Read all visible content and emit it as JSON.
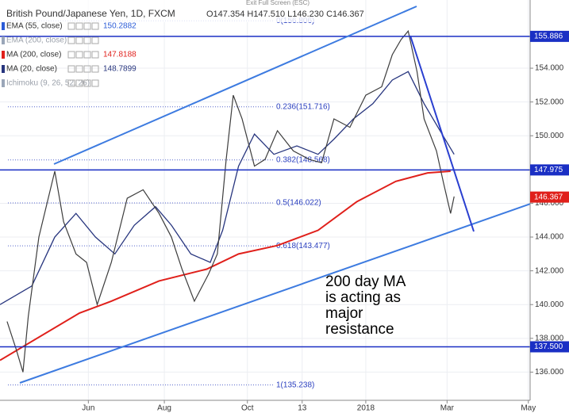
{
  "chart_data": {
    "type": "line",
    "title": "British Pound/Japanese Yen, 1D, FXCM",
    "ohlc_text": "O147.354 H147.510 L146.230 C146.367",
    "toolbar_text": "Exit Full Screen (ESC)",
    "xlim": [
      0,
      300
    ],
    "ylim": [
      134.33,
      158.04
    ],
    "xticks": [
      {
        "value": 50,
        "label": "Jun"
      },
      {
        "value": 93,
        "label": "Aug"
      },
      {
        "value": 140,
        "label": "Oct"
      },
      {
        "value": 171,
        "label": "13"
      },
      {
        "value": 207,
        "label": "2018"
      },
      {
        "value": 253,
        "label": "Mar"
      },
      {
        "value": 299,
        "label": "May"
      }
    ],
    "yticks": [
      {
        "value": 136,
        "label": "136.000"
      },
      {
        "value": 138,
        "label": "138.000"
      },
      {
        "value": 140,
        "label": "140.000"
      },
      {
        "value": 142,
        "label": "142.000"
      },
      {
        "value": 144,
        "label": "144.000"
      },
      {
        "value": 146,
        "label": "146.000"
      },
      {
        "value": 148,
        "label": "148.000"
      },
      {
        "value": 150,
        "label": "150.000"
      },
      {
        "value": 152,
        "label": "152.000"
      },
      {
        "value": 154,
        "label": "154.000"
      }
    ],
    "price": {
      "color": "#3d3d3d",
      "x": [
        4,
        9,
        13,
        16,
        22,
        31,
        36,
        43,
        49,
        55,
        63,
        72,
        81,
        90,
        97,
        103,
        110,
        118,
        123,
        128,
        132,
        137,
        144,
        150,
        157,
        166,
        175,
        182,
        189,
        198,
        207,
        216,
        222,
        227,
        231,
        236,
        240,
        247,
        251,
        255,
        257
      ],
      "values": [
        139.0,
        137.4,
        136.0,
        139.3,
        144.0,
        147.9,
        144.9,
        143.0,
        142.5,
        140.0,
        142.5,
        146.3,
        146.8,
        145.4,
        144.0,
        142.1,
        140.2,
        141.8,
        143.0,
        148.6,
        152.4,
        151.0,
        148.2,
        148.6,
        150.3,
        149.1,
        148.6,
        148.4,
        151.0,
        150.5,
        152.4,
        152.9,
        154.8,
        155.7,
        156.2,
        153.8,
        151.0,
        149.1,
        147.2,
        145.4,
        146.4
      ]
    },
    "series": [
      {
        "name": "EMA (55, close)",
        "reading": 150.2882,
        "color": "#2a5bd7"
      },
      {
        "name": "EMA (200, close)",
        "color": "#9aa6b8"
      },
      {
        "name": "MA (200, close)",
        "reading": 147.8188,
        "color": "#e0201b",
        "x": [
          0,
          45,
          63,
          90,
          117,
          135,
          157,
          180,
          202,
          224,
          242,
          255
        ],
        "values": [
          136.7,
          139.5,
          140.2,
          141.4,
          142.1,
          143.0,
          143.5,
          144.4,
          146.1,
          147.3,
          147.8,
          147.9
        ]
      },
      {
        "name": "MA (20, close)",
        "reading": 148.7899,
        "color": "#27357e",
        "x": [
          0,
          18,
          31,
          43,
          54,
          65,
          76,
          88,
          97,
          108,
          119,
          126,
          135,
          144,
          155,
          168,
          180,
          189,
          200,
          211,
          222,
          231,
          240,
          249,
          257
        ],
        "values": [
          140.0,
          141.1,
          144.0,
          145.4,
          144.0,
          143.0,
          144.7,
          145.8,
          144.7,
          143.0,
          142.5,
          144.4,
          148.2,
          150.1,
          148.9,
          149.4,
          148.9,
          149.8,
          151.0,
          151.9,
          153.3,
          153.8,
          151.9,
          150.3,
          148.9
        ]
      },
      {
        "name": "Ichimoku (9, 26, 52, 26)",
        "color": "#9aa6b8"
      }
    ],
    "levels": [
      {
        "value": 155.886,
        "color": "#1a2fc4"
      },
      {
        "value": 147.975,
        "color": "#1a2fc4"
      },
      {
        "value": {
          "value": 137.5,
          "label": "137.500"
        },
        "color": "#1a2fc4"
      },
      {
        "value": 146.367,
        "color": "#e0201b"
      }
    ],
    "fib_levels": [
      {
        "value": 156.806,
        "label": "0(156.806)"
      },
      {
        "value": 151.716,
        "label": "0.236(151.716)"
      },
      {
        "value": 148.568,
        "label": "0.382(148.568)"
      },
      {
        "value": 146.022,
        "label": "0.5(146.022)"
      },
      {
        "value": 143.477,
        "label": "0.618(143.477)"
      },
      {
        "value": 135.238,
        "label": "1(135.238)"
      }
    ],
    "annotation": [
      "200 day MA",
      "is acting as",
      "major",
      "resistance"
    ]
  }
}
